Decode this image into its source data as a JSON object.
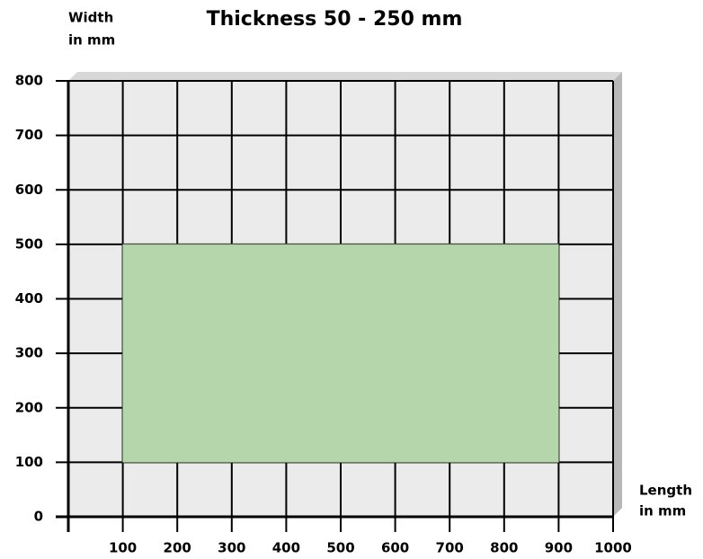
{
  "chart_data": {
    "type": "range",
    "title": "Thickness 50 - 250 mm",
    "y_label": [
      "Width",
      "in mm"
    ],
    "x_label": [
      "Length",
      "in mm"
    ],
    "xlim": [
      0,
      1000
    ],
    "xticks": [
      100,
      200,
      300,
      400,
      500,
      600,
      700,
      800,
      900,
      1000
    ],
    "ylim": [
      0,
      800
    ],
    "yticks": [
      0,
      100,
      200,
      300,
      400,
      500,
      600,
      700,
      800
    ],
    "grid": true,
    "grid_color": "#000000",
    "background": "#ebebeb",
    "range": {
      "x": [
        100,
        900
      ],
      "y": [
        100,
        500
      ],
      "color": "#b5d5aa"
    }
  }
}
